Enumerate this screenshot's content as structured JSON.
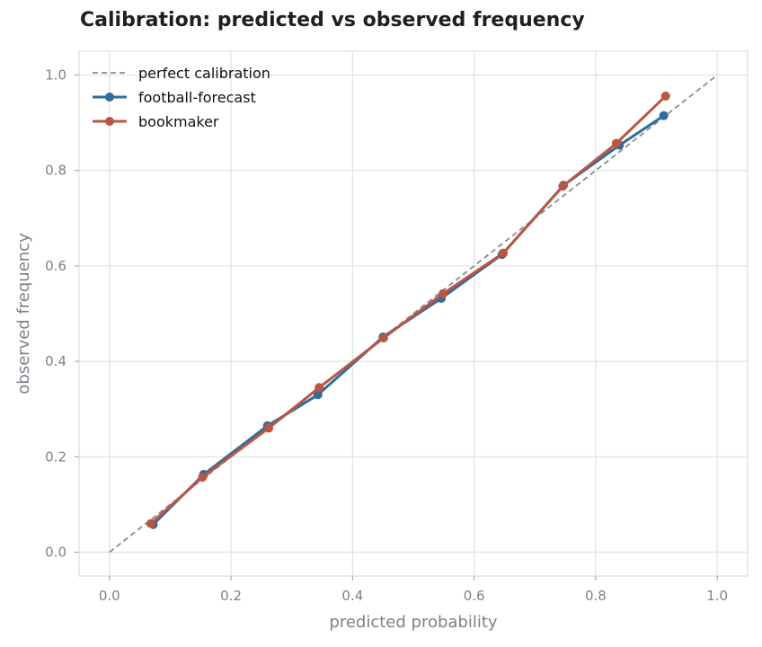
{
  "chart_data": {
    "type": "line",
    "title": "Calibration: predicted vs observed frequency",
    "xlabel": "predicted probability",
    "ylabel": "observed frequency",
    "xlim": [
      -0.05,
      1.05
    ],
    "ylim": [
      -0.05,
      1.05
    ],
    "xticks": [
      0.0,
      0.2,
      0.4,
      0.6,
      0.8,
      1.0
    ],
    "yticks": [
      0.0,
      0.2,
      0.4,
      0.6,
      0.8,
      1.0
    ],
    "xtick_labels": [
      "0.0",
      "0.2",
      "0.4",
      "0.6",
      "0.8",
      "1.0"
    ],
    "ytick_labels": [
      "0.0",
      "0.2",
      "0.4",
      "0.6",
      "0.8",
      "1.0"
    ],
    "grid": true,
    "legend_position": "top-left",
    "reference_line": {
      "name": "perfect calibration",
      "x": [
        0.0,
        1.0
      ],
      "y": [
        0.0,
        1.0
      ],
      "color": "#8a8a94",
      "style": "dashed"
    },
    "series": [
      {
        "name": "football-forecast",
        "color": "#336b9b",
        "x": [
          0.072,
          0.155,
          0.26,
          0.343,
          0.45,
          0.546,
          0.646,
          0.747,
          0.839,
          0.912
        ],
        "y": [
          0.058,
          0.163,
          0.265,
          0.33,
          0.451,
          0.532,
          0.624,
          0.769,
          0.853,
          0.915
        ]
      },
      {
        "name": "bookmaker",
        "color": "#b95742",
        "x": [
          0.068,
          0.153,
          0.262,
          0.345,
          0.451,
          0.549,
          0.648,
          0.746,
          0.834,
          0.915
        ],
        "y": [
          0.06,
          0.157,
          0.26,
          0.345,
          0.449,
          0.542,
          0.627,
          0.767,
          0.857,
          0.956
        ]
      }
    ]
  }
}
